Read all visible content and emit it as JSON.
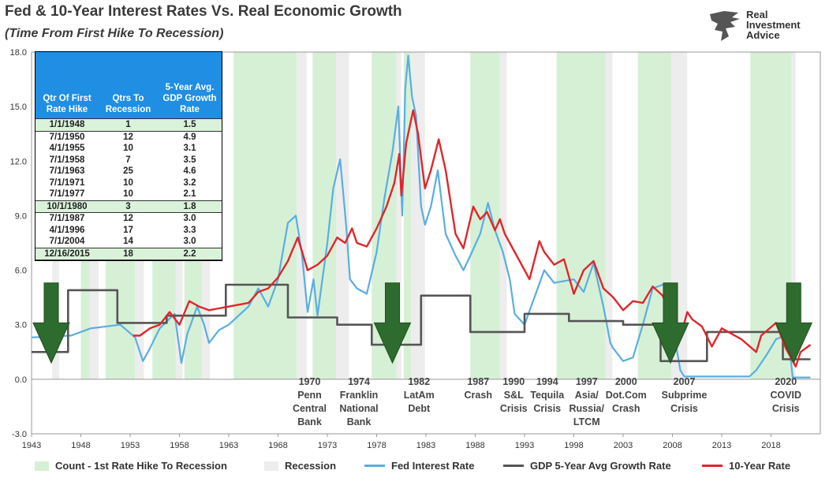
{
  "title": "Fed & 10-Year Interest Rates Vs. Real Economic Growth",
  "subtitle": "(Time From First Hike To Recession)",
  "logo": {
    "line1": "Real",
    "line2": "Investment",
    "line3": "Advice"
  },
  "table": {
    "headers": [
      "Qtr Of First Rate Hike",
      "Qtrs To Recession",
      "5-Year Avg. GDP Growth Rate"
    ],
    "rows": [
      {
        "date": "1/1/1948",
        "qtrs": "1",
        "gdp": "1.5",
        "highlight": true
      },
      {
        "date": "7/1/1950",
        "qtrs": "12",
        "gdp": "4.9",
        "highlight": false
      },
      {
        "date": "4/1/1955",
        "qtrs": "10",
        "gdp": "3.1",
        "highlight": false
      },
      {
        "date": "7/1/1958",
        "qtrs": "7",
        "gdp": "3.5",
        "highlight": false
      },
      {
        "date": "7/1/1963",
        "qtrs": "25",
        "gdp": "4.6",
        "highlight": false
      },
      {
        "date": "7/1/1971",
        "qtrs": "10",
        "gdp": "3.2",
        "highlight": false
      },
      {
        "date": "7/1/1977",
        "qtrs": "10",
        "gdp": "2.1",
        "highlight": false
      },
      {
        "date": "10/1/1980",
        "qtrs": "3",
        "gdp": "1.8",
        "highlight": true
      },
      {
        "date": "7/1/1987",
        "qtrs": "12",
        "gdp": "3.0",
        "highlight": false
      },
      {
        "date": "4/1/1996",
        "qtrs": "17",
        "gdp": "3.3",
        "highlight": false
      },
      {
        "date": "7/1/2004",
        "qtrs": "14",
        "gdp": "3.0",
        "highlight": false
      },
      {
        "date": "12/16/2015",
        "qtrs": "18",
        "gdp": "2.2",
        "highlight": true
      }
    ]
  },
  "legend": {
    "count": "Count - 1st Rate Hike To Recession",
    "recession": "Recession",
    "fed": "Fed Interest Rate",
    "gdp": "GDP 5-Year Avg Growth Rate",
    "ten": "10-Year Rate"
  },
  "colors": {
    "count": "#d6f0d6",
    "recession": "#ededed",
    "fed": "#5aaee0",
    "gdp": "#555555",
    "ten": "#e0262c",
    "arrow": "#2e6b2e"
  },
  "chart_data": {
    "type": "line",
    "xlim": [
      1943,
      2023
    ],
    "ylim": [
      -3,
      18
    ],
    "x_ticks": [
      "1943",
      "1948",
      "1953",
      "1958",
      "1963",
      "1968",
      "1973",
      "1978",
      "1983",
      "1988",
      "1993",
      "1998",
      "2003",
      "2008",
      "2013",
      "2018"
    ],
    "y_ticks": [
      "18.0",
      "15.0",
      "12.0",
      "9.0",
      "6.0",
      "3.0",
      "0.0",
      "-3.0"
    ],
    "count_bands": [
      [
        1948,
        1949
      ],
      [
        1950.5,
        1953.5
      ],
      [
        1955.25,
        1957.6
      ],
      [
        1958.5,
        1960.3
      ],
      [
        1963.5,
        1969.9
      ],
      [
        1971.5,
        1973.9
      ],
      [
        1977.5,
        1980.0
      ],
      [
        1980.75,
        1981.5
      ],
      [
        1987.5,
        1990.5
      ],
      [
        1996.25,
        2001.2
      ],
      [
        2004.5,
        2007.9
      ],
      [
        2015.9,
        2020.1
      ]
    ],
    "recession_bands": [
      [
        1945.1,
        1945.8
      ],
      [
        1948.9,
        1949.8
      ],
      [
        1953.5,
        1954.4
      ],
      [
        1957.6,
        1958.3
      ],
      [
        1960.3,
        1961.1
      ],
      [
        1969.9,
        1970.9
      ],
      [
        1973.9,
        1975.2
      ],
      [
        1980.0,
        1980.5
      ],
      [
        1981.5,
        1982.9
      ],
      [
        1990.5,
        1991.2
      ],
      [
        2001.2,
        2001.9
      ],
      [
        2007.9,
        2009.5
      ],
      [
        2020.1,
        2020.5
      ]
    ],
    "series": [
      {
        "name": "Fed Interest Rate",
        "points": [
          [
            1943,
            2.3
          ],
          [
            1947,
            2.4
          ],
          [
            1949,
            2.8
          ],
          [
            1952,
            3.0
          ],
          [
            1953.5,
            2.3
          ],
          [
            1954.3,
            1.0
          ],
          [
            1955,
            1.7
          ],
          [
            1956,
            2.8
          ],
          [
            1957.5,
            3.6
          ],
          [
            1958.2,
            0.9
          ],
          [
            1958.8,
            2.5
          ],
          [
            1959.8,
            4.0
          ],
          [
            1960.5,
            3.0
          ],
          [
            1961,
            2.0
          ],
          [
            1962,
            2.7
          ],
          [
            1963,
            3.0
          ],
          [
            1964,
            3.5
          ],
          [
            1965,
            4.0
          ],
          [
            1966,
            5.0
          ],
          [
            1967,
            4.0
          ],
          [
            1968,
            5.5
          ],
          [
            1969,
            8.6
          ],
          [
            1969.8,
            9.0
          ],
          [
            1970.4,
            7.0
          ],
          [
            1971,
            3.7
          ],
          [
            1971.6,
            5.5
          ],
          [
            1972,
            3.5
          ],
          [
            1973,
            7.5
          ],
          [
            1973.6,
            10.5
          ],
          [
            1974.3,
            12.1
          ],
          [
            1974.9,
            8.5
          ],
          [
            1975.3,
            5.5
          ],
          [
            1976,
            5.0
          ],
          [
            1977,
            4.7
          ],
          [
            1978,
            7.0
          ],
          [
            1978.8,
            10.0
          ],
          [
            1979.6,
            12.5
          ],
          [
            1980.2,
            15.0
          ],
          [
            1980.6,
            9.0
          ],
          [
            1980.9,
            16.0
          ],
          [
            1981.2,
            17.8
          ],
          [
            1981.6,
            15.5
          ],
          [
            1982,
            14.5
          ],
          [
            1982.5,
            9.5
          ],
          [
            1982.9,
            8.5
          ],
          [
            1983.5,
            9.5
          ],
          [
            1984.2,
            11.5
          ],
          [
            1985,
            8.0
          ],
          [
            1986,
            6.8
          ],
          [
            1986.8,
            6.0
          ],
          [
            1987.5,
            6.8
          ],
          [
            1988.5,
            8.0
          ],
          [
            1989.3,
            9.7
          ],
          [
            1990,
            8.2
          ],
          [
            1990.8,
            7.0
          ],
          [
            1991.5,
            5.5
          ],
          [
            1992,
            3.6
          ],
          [
            1993,
            3.0
          ],
          [
            1994,
            4.5
          ],
          [
            1995,
            6.0
          ],
          [
            1996,
            5.3
          ],
          [
            1998,
            5.5
          ],
          [
            1999,
            4.8
          ],
          [
            2000,
            6.4
          ],
          [
            2001,
            4.0
          ],
          [
            2001.7,
            2.0
          ],
          [
            2002,
            1.7
          ],
          [
            2003,
            1.0
          ],
          [
            2004,
            1.2
          ],
          [
            2005,
            3.0
          ],
          [
            2006,
            5.0
          ],
          [
            2007,
            5.2
          ],
          [
            2007.5,
            5.0
          ],
          [
            2008,
            3.0
          ],
          [
            2008.8,
            0.5
          ],
          [
            2009.2,
            0.15
          ],
          [
            2015.8,
            0.15
          ],
          [
            2016.5,
            0.5
          ],
          [
            2017.5,
            1.3
          ],
          [
            2018.5,
            2.2
          ],
          [
            2019.4,
            2.4
          ],
          [
            2019.9,
            1.6
          ],
          [
            2020.2,
            0.1
          ],
          [
            2022,
            0.1
          ]
        ]
      },
      {
        "name": "GDP 5-Year Avg Growth Rate",
        "points": [
          [
            1943,
            1.5
          ],
          [
            1946.7,
            1.5
          ],
          [
            1946.7,
            4.9
          ],
          [
            1951.7,
            4.9
          ],
          [
            1951.7,
            3.1
          ],
          [
            1956.7,
            3.1
          ],
          [
            1956.7,
            3.5
          ],
          [
            1962.7,
            3.5
          ],
          [
            1962.7,
            5.2
          ],
          [
            1969,
            5.2
          ],
          [
            1969,
            3.4
          ],
          [
            1974,
            3.4
          ],
          [
            1974,
            3.0
          ],
          [
            1977.5,
            3.0
          ],
          [
            1977.5,
            1.9
          ],
          [
            1982.5,
            1.9
          ],
          [
            1982.5,
            4.6
          ],
          [
            1987.5,
            4.6
          ],
          [
            1987.5,
            2.6
          ],
          [
            1993,
            2.6
          ],
          [
            1993,
            3.6
          ],
          [
            1997.5,
            3.6
          ],
          [
            1997.5,
            3.2
          ],
          [
            2003,
            3.2
          ],
          [
            2003,
            3.0
          ],
          [
            2006.8,
            3.0
          ],
          [
            2006.8,
            1.0
          ],
          [
            2011.5,
            1.0
          ],
          [
            2011.5,
            2.6
          ],
          [
            2019.2,
            2.6
          ],
          [
            2019.2,
            1.1
          ],
          [
            2022,
            1.1
          ]
        ]
      },
      {
        "name": "10-Year Rate",
        "points": [
          [
            1953.3,
            2.4
          ],
          [
            1954,
            2.4
          ],
          [
            1955,
            2.8
          ],
          [
            1956,
            3.0
          ],
          [
            1957,
            3.7
          ],
          [
            1958,
            3.0
          ],
          [
            1959,
            4.3
          ],
          [
            1960,
            4.0
          ],
          [
            1961,
            3.8
          ],
          [
            1962,
            3.9
          ],
          [
            1963,
            4.0
          ],
          [
            1965,
            4.2
          ],
          [
            1966,
            4.8
          ],
          [
            1967,
            5.0
          ],
          [
            1968,
            5.6
          ],
          [
            1969,
            6.5
          ],
          [
            1970,
            7.8
          ],
          [
            1971,
            6.0
          ],
          [
            1972,
            6.3
          ],
          [
            1973,
            6.8
          ],
          [
            1974,
            7.8
          ],
          [
            1974.8,
            7.5
          ],
          [
            1975.5,
            8.3
          ],
          [
            1976,
            7.5
          ],
          [
            1977,
            7.3
          ],
          [
            1978,
            8.3
          ],
          [
            1979,
            9.5
          ],
          [
            1979.8,
            10.8
          ],
          [
            1980.3,
            12.4
          ],
          [
            1980.5,
            10.1
          ],
          [
            1981,
            13.0
          ],
          [
            1981.7,
            14.8
          ],
          [
            1982.2,
            13.5
          ],
          [
            1982.9,
            10.5
          ],
          [
            1983.5,
            11.5
          ],
          [
            1984.3,
            13.2
          ],
          [
            1985,
            11.5
          ],
          [
            1986,
            8.0
          ],
          [
            1986.8,
            7.2
          ],
          [
            1987.8,
            9.5
          ],
          [
            1988.5,
            8.8
          ],
          [
            1989.2,
            9.2
          ],
          [
            1990,
            8.2
          ],
          [
            1990.5,
            8.8
          ],
          [
            1991,
            8.0
          ],
          [
            1992,
            7.0
          ],
          [
            1993.5,
            5.5
          ],
          [
            1994.5,
            7.6
          ],
          [
            1995,
            7.0
          ],
          [
            1996,
            6.3
          ],
          [
            1997,
            6.6
          ],
          [
            1998,
            4.7
          ],
          [
            1999,
            6.0
          ],
          [
            2000,
            6.5
          ],
          [
            2001,
            5.0
          ],
          [
            2002,
            4.5
          ],
          [
            2003,
            3.8
          ],
          [
            2004,
            4.3
          ],
          [
            2005,
            4.2
          ],
          [
            2006,
            5.1
          ],
          [
            2007,
            4.6
          ],
          [
            2008,
            3.4
          ],
          [
            2008.9,
            2.5
          ],
          [
            2009.5,
            3.7
          ],
          [
            2010,
            3.3
          ],
          [
            2011,
            2.9
          ],
          [
            2012,
            1.8
          ],
          [
            2013,
            2.8
          ],
          [
            2014,
            2.5
          ],
          [
            2015,
            2.2
          ],
          [
            2016.5,
            1.5
          ],
          [
            2017,
            2.4
          ],
          [
            2018.5,
            3.1
          ],
          [
            2019.5,
            1.7
          ],
          [
            2020.5,
            0.7
          ],
          [
            2021,
            1.5
          ],
          [
            2022,
            1.9
          ]
        ]
      }
    ],
    "arrows": [
      1945,
      1979.6,
      2007.8,
      2020.3
    ],
    "annotations": [
      {
        "x": 1971.2,
        "lines": [
          "1970",
          "Penn",
          "Central",
          "Bank"
        ]
      },
      {
        "x": 1976.2,
        "lines": [
          "1974",
          "Franklin",
          "National",
          "Bank"
        ]
      },
      {
        "x": 1982.3,
        "lines": [
          "1982",
          "LatAm",
          "Debt"
        ]
      },
      {
        "x": 1988.3,
        "lines": [
          "1987",
          "Crash"
        ]
      },
      {
        "x": 1991.9,
        "lines": [
          "1990",
          "S&L",
          "Crisis"
        ]
      },
      {
        "x": 1995.3,
        "lines": [
          "1994",
          "Tequila",
          "Crisis"
        ]
      },
      {
        "x": 1999.3,
        "lines": [
          "1997",
          "Asia/",
          "Russia/",
          "LTCM"
        ]
      },
      {
        "x": 2003.3,
        "lines": [
          "2000",
          "Dot.Com",
          "Crash"
        ]
      },
      {
        "x": 2009.2,
        "lines": [
          "2007",
          "Subprime",
          "Crisis"
        ]
      },
      {
        "x": 2019.5,
        "lines": [
          "2020",
          "COVID",
          "Crisis"
        ]
      }
    ]
  }
}
